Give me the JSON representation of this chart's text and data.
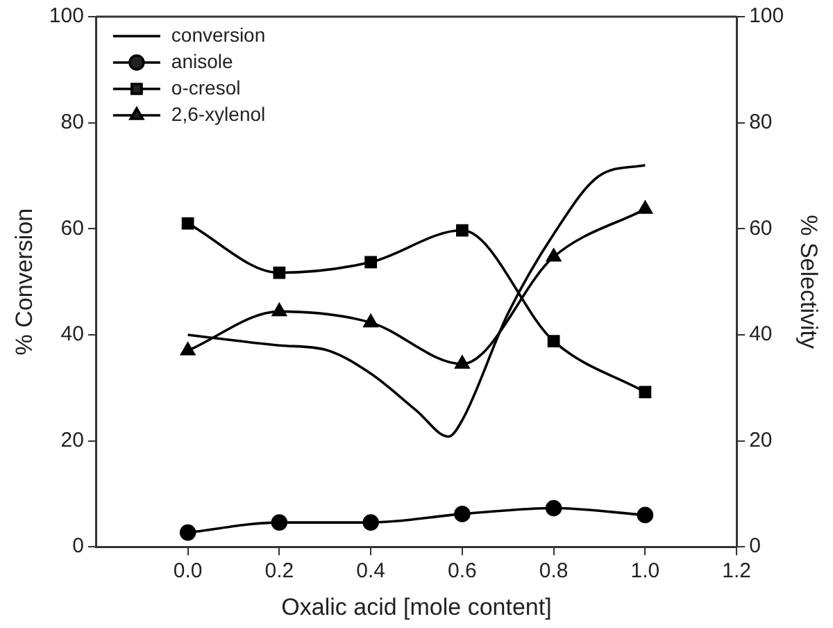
{
  "chart_data": {
    "type": "line",
    "xlabel": "Oxalic acid [mole content]",
    "ylabel": "% Conversion",
    "y2label": "% Selectivity",
    "xlim": [
      -0.2,
      1.2
    ],
    "xticks": [
      {
        "value": 0,
        "label": "0.0"
      },
      {
        "value": 0.2,
        "label": "0.2"
      },
      {
        "value": 0.4,
        "label": "0.4"
      },
      {
        "value": 0.6,
        "label": "0.6"
      },
      {
        "value": 0.8,
        "label": "0.8"
      },
      {
        "value": 1,
        "label": "1.0"
      },
      {
        "value": 1.2,
        "label": "1.2"
      }
    ],
    "ylim": [
      0,
      100
    ],
    "yticks": [
      0,
      20,
      40,
      60,
      80,
      100
    ],
    "y2lim": [
      0,
      100
    ],
    "y2ticks": [
      0,
      20,
      40,
      60,
      80,
      100
    ],
    "grid": false,
    "legend": "top left",
    "line_style": "solid",
    "x": [
      0,
      0.2,
      0.4,
      0.6,
      0.8,
      1.0
    ],
    "series": [
      {
        "name": "conversion",
        "color": "#000000",
        "marker": "none",
        "x": [
          0,
          0.2,
          0.3,
          0.4,
          0.5,
          0.57,
          0.6,
          0.7,
          0.8,
          0.9,
          1.0
        ],
        "values": [
          40,
          38,
          37.2,
          32.7,
          25.7,
          20.8,
          23.9,
          44,
          59,
          70,
          72
        ]
      },
      {
        "name": "anisole",
        "color": "#000000",
        "marker": "circle",
        "values": [
          2.7,
          4.6,
          4.6,
          6.2,
          7.3,
          6
        ]
      },
      {
        "name": "o-cresol",
        "color": "#000000",
        "marker": "square",
        "values": [
          61,
          51.7,
          53.7,
          59.7,
          38.8,
          29.2
        ]
      },
      {
        "name": "2,6-xylenol",
        "color": "#000000",
        "marker": "triangle",
        "values": [
          37,
          44.4,
          42.3,
          34.5,
          54.7,
          63.7
        ]
      }
    ]
  }
}
